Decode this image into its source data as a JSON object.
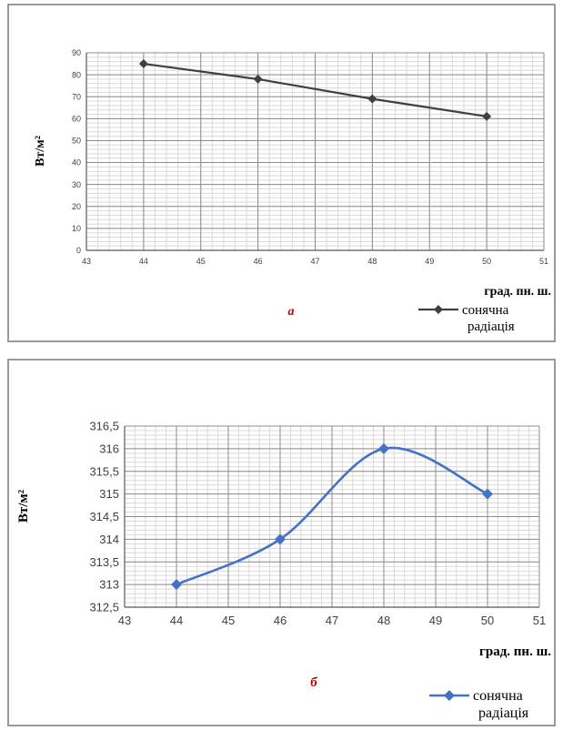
{
  "chart_data": [
    {
      "type": "line",
      "subtitle": "а",
      "xlabel": "град. пн. ш.",
      "ylabel": "Вт/м²",
      "xlim": [
        43,
        51
      ],
      "ylim": [
        0,
        90
      ],
      "x_ticks": [
        "43",
        "44",
        "45",
        "46",
        "47",
        "48",
        "49",
        "50",
        "51"
      ],
      "y_ticks": [
        "0",
        "10",
        "20",
        "30",
        "40",
        "50",
        "60",
        "70",
        "80",
        "90"
      ],
      "grid": true,
      "legend_position": "bottom-right",
      "smooth": false,
      "series": [
        {
          "name": "сонячна радіація",
          "color": "#404040",
          "marker": "diamond",
          "x": [
            44,
            46,
            48,
            50
          ],
          "y": [
            85,
            78,
            69,
            61
          ]
        }
      ]
    },
    {
      "type": "line",
      "subtitle": "б",
      "xlabel": "град. пн. ш.",
      "ylabel": "Вт/м²",
      "xlim": [
        43,
        51
      ],
      "ylim": [
        312.5,
        316.5
      ],
      "x_ticks": [
        "43",
        "44",
        "45",
        "46",
        "47",
        "48",
        "49",
        "50",
        "51"
      ],
      "y_ticks": [
        "312,5",
        "313",
        "313,5",
        "314",
        "314,5",
        "315",
        "315,5",
        "316",
        "316,5"
      ],
      "grid": true,
      "legend_position": "bottom-right",
      "smooth": true,
      "series": [
        {
          "name": "сонячна радіація",
          "color": "#4472c4",
          "marker": "diamond",
          "x": [
            44,
            46,
            48,
            50
          ],
          "y": [
            313,
            314,
            316,
            315
          ]
        }
      ]
    }
  ]
}
